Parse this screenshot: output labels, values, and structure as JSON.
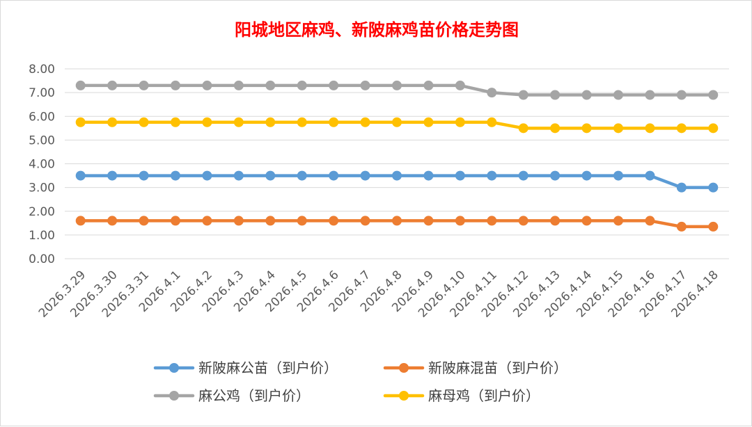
{
  "chart_data": {
    "type": "line",
    "title": "阳城地区麻鸡、新陂麻鸡苗价格走势图",
    "xlabel": "",
    "ylabel": "",
    "ylim": [
      0,
      8
    ],
    "yticks": [
      "0.00",
      "1.00",
      "2.00",
      "3.00",
      "4.00",
      "5.00",
      "6.00",
      "7.00",
      "8.00"
    ],
    "grid": true,
    "legend_position": "bottom",
    "categories": [
      "2026.3.29",
      "2026.3.30",
      "2026.3.31",
      "2026.4.1",
      "2026.4.2",
      "2026.4.3",
      "2026.4.4",
      "2026.4.5",
      "2026.4.6",
      "2026.4.7",
      "2026.4.8",
      "2026.4.9",
      "2026.4.10",
      "2026.4.11",
      "2026.4.12",
      "2026.4.13",
      "2026.4.14",
      "2026.4.15",
      "2026.4.16",
      "2026.4.17",
      "2026.4.18"
    ],
    "series": [
      {
        "name": "新陂麻公苗（到户价）",
        "color": "#5b9bd5",
        "values": [
          3.5,
          3.5,
          3.5,
          3.5,
          3.5,
          3.5,
          3.5,
          3.5,
          3.5,
          3.5,
          3.5,
          3.5,
          3.5,
          3.5,
          3.5,
          3.5,
          3.5,
          3.5,
          3.5,
          3.0,
          3.0
        ]
      },
      {
        "name": "新陂麻混苗（到户价）",
        "color": "#ed7d31",
        "values": [
          1.6,
          1.6,
          1.6,
          1.6,
          1.6,
          1.6,
          1.6,
          1.6,
          1.6,
          1.6,
          1.6,
          1.6,
          1.6,
          1.6,
          1.6,
          1.6,
          1.6,
          1.6,
          1.6,
          1.35,
          1.35
        ]
      },
      {
        "name": "麻公鸡（到户价）",
        "color": "#a5a5a5",
        "values": [
          7.3,
          7.3,
          7.3,
          7.3,
          7.3,
          7.3,
          7.3,
          7.3,
          7.3,
          7.3,
          7.3,
          7.3,
          7.3,
          7.0,
          6.9,
          6.9,
          6.9,
          6.9,
          6.9,
          6.9,
          6.9
        ]
      },
      {
        "name": "麻母鸡（到户价）",
        "color": "#ffc000",
        "values": [
          5.75,
          5.75,
          5.75,
          5.75,
          5.75,
          5.75,
          5.75,
          5.75,
          5.75,
          5.75,
          5.75,
          5.75,
          5.75,
          5.75,
          5.5,
          5.5,
          5.5,
          5.5,
          5.5,
          5.5,
          5.5
        ]
      }
    ]
  }
}
